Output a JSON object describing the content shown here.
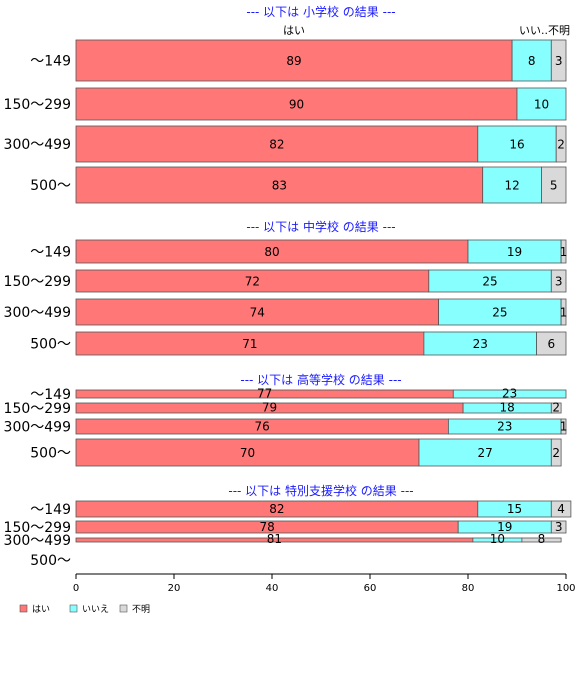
{
  "chart_data": {
    "type": "bar",
    "orientation": "horizontal",
    "stacked": true,
    "xlim": [
      0,
      100
    ],
    "xticks": [
      0,
      20,
      40,
      60,
      80,
      100
    ],
    "legend_position": "bottom-left",
    "series_names": [
      "はい",
      "いいえ",
      "不明"
    ],
    "series_header": {
      "yes": "はい",
      "other": "いい..不明"
    },
    "colors": {
      "yes": "#ff7777",
      "no": "#88ffff",
      "unknown": "#d9d9d9"
    },
    "groups": [
      {
        "title": "--- 以下は 小学校 の結果 ---",
        "categories": [
          "～149",
          "150～299",
          "300～499",
          "500～"
        ],
        "values": [
          [
            89,
            8,
            3
          ],
          [
            90,
            10,
            0
          ],
          [
            82,
            16,
            2
          ],
          [
            83,
            12,
            5
          ]
        ],
        "labels": [
          [
            "89",
            "8",
            "3"
          ],
          [
            "90",
            "10",
            ""
          ],
          [
            "82",
            "16",
            "2"
          ],
          [
            "83",
            "12",
            "5"
          ]
        ]
      },
      {
        "title": "--- 以下は 中学校 の結果 ---",
        "categories": [
          "～149",
          "150～299",
          "300～499",
          "500～"
        ],
        "values": [
          [
            80,
            19,
            1
          ],
          [
            72,
            25,
            3
          ],
          [
            74,
            25,
            1
          ],
          [
            71,
            23,
            6
          ]
        ],
        "labels": [
          [
            "80",
            "19",
            "1"
          ],
          [
            "72",
            "25",
            "3"
          ],
          [
            "74",
            "25",
            "1"
          ],
          [
            "71",
            "23",
            "6"
          ]
        ]
      },
      {
        "title": "--- 以下は 高等学校 の結果 ---",
        "categories": [
          "～149",
          "150～299",
          "300～499",
          "500～"
        ],
        "values": [
          [
            77,
            23,
            0
          ],
          [
            79,
            18,
            2
          ],
          [
            76,
            23,
            1
          ],
          [
            70,
            27,
            2
          ]
        ],
        "labels": [
          [
            "77",
            "23",
            ""
          ],
          [
            "79",
            "18",
            "2"
          ],
          [
            "76",
            "23",
            "1"
          ],
          [
            "70",
            "27",
            "2"
          ]
        ]
      },
      {
        "title": "--- 以下は 特別支援学校 の結果 ---",
        "categories": [
          "～149",
          "150～299",
          "300～499",
          "500～"
        ],
        "values": [
          [
            82,
            15,
            4
          ],
          [
            78,
            19,
            3
          ],
          [
            81,
            10,
            8
          ],
          null
        ],
        "labels": [
          [
            "82",
            "15",
            "4"
          ],
          [
            "78",
            "19",
            "3"
          ],
          [
            "81",
            "10",
            "8"
          ],
          null
        ]
      }
    ]
  }
}
